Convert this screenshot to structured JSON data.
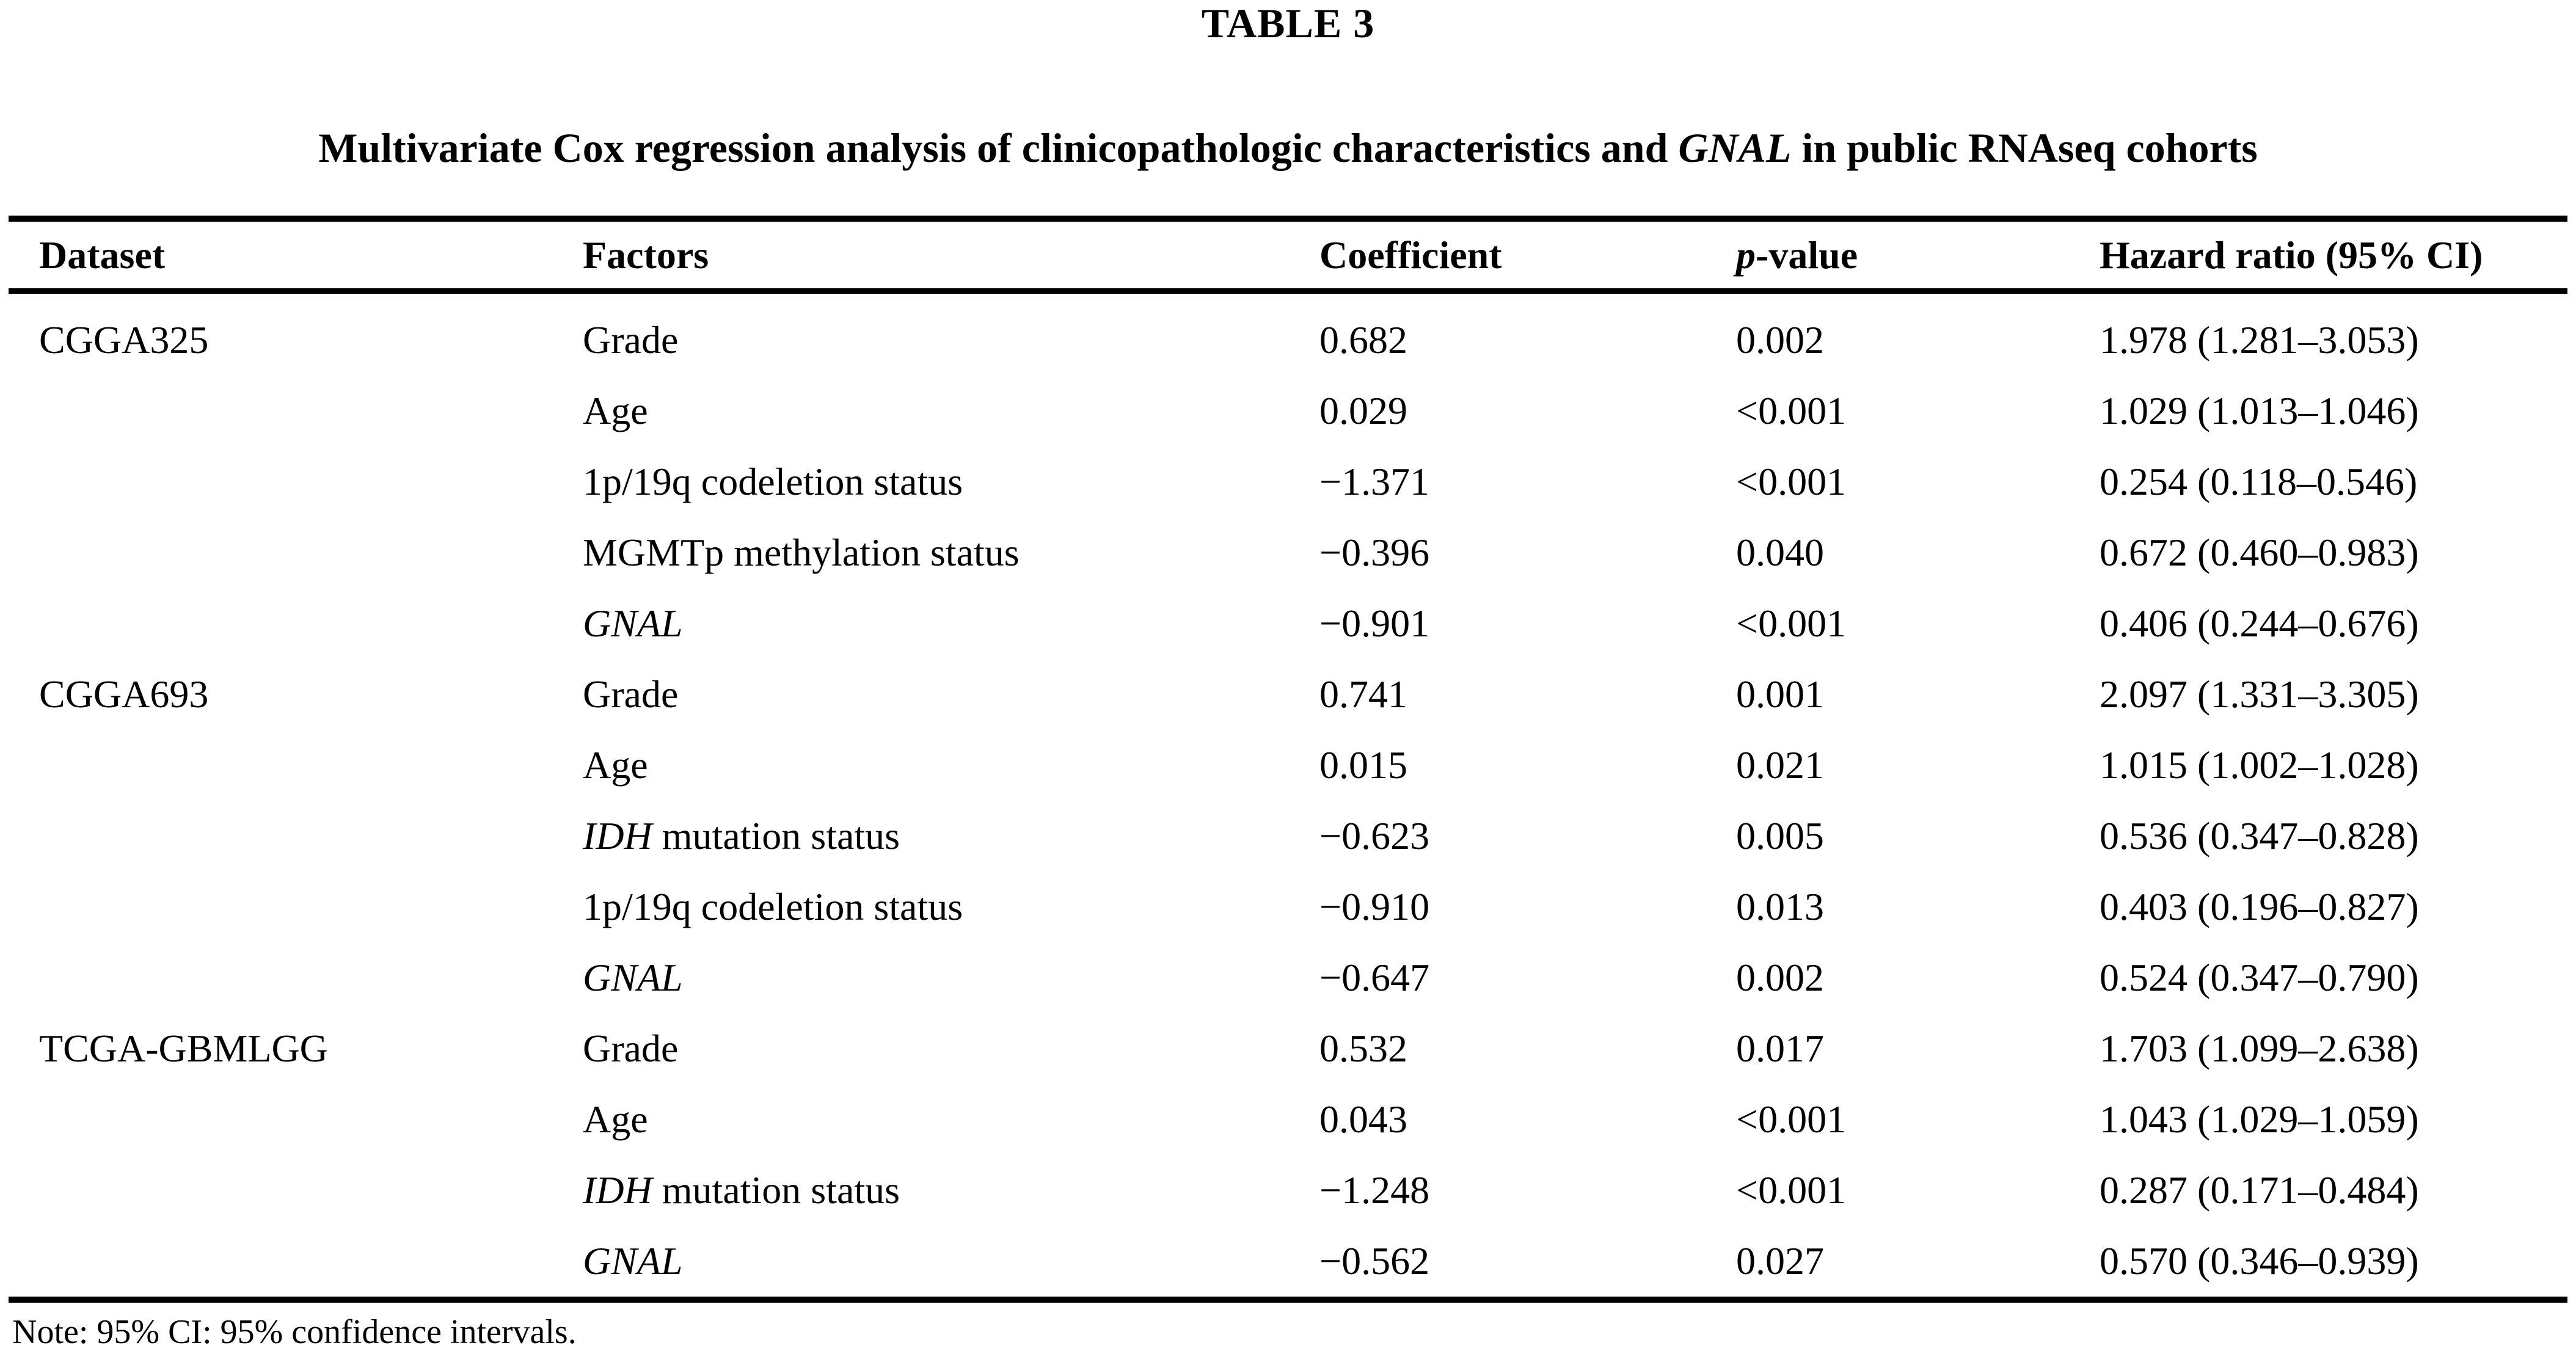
{
  "page": {
    "table_label": "TABLE 3",
    "note": "Note: 95% CI: 95% confidence intervals."
  },
  "title_segments": [
    {
      "t": "Multivariate Cox regression analysis of clinicopathologic characteristics and ",
      "i": false
    },
    {
      "t": "GNAL",
      "i": true
    },
    {
      "t": " in public RNAseq cohorts",
      "i": false
    }
  ],
  "table": {
    "headers": [
      {
        "segments": [
          {
            "t": "Dataset",
            "i": false
          }
        ]
      },
      {
        "segments": [
          {
            "t": "Factors",
            "i": false
          }
        ]
      },
      {
        "segments": [
          {
            "t": "Coefficient",
            "i": false
          }
        ]
      },
      {
        "segments": [
          {
            "t": "p",
            "i": true
          },
          {
            "t": "-value",
            "i": false
          }
        ]
      },
      {
        "segments": [
          {
            "t": "Hazard ratio (95% CI)",
            "i": false
          }
        ]
      }
    ],
    "rows": [
      {
        "dataset": "CGGA325",
        "factor": [
          {
            "t": "Grade",
            "i": false
          }
        ],
        "coefficient": "0.682",
        "p_value": "0.002",
        "hazard_ratio": "1.978 (1.281–3.053)"
      },
      {
        "dataset": "",
        "factor": [
          {
            "t": "Age",
            "i": false
          }
        ],
        "coefficient": "0.029",
        "p_value": "<0.001",
        "hazard_ratio": "1.029 (1.013–1.046)"
      },
      {
        "dataset": "",
        "factor": [
          {
            "t": "1p/19q codeletion status",
            "i": false
          }
        ],
        "coefficient": "−1.371",
        "p_value": "<0.001",
        "hazard_ratio": "0.254 (0.118–0.546)"
      },
      {
        "dataset": "",
        "factor": [
          {
            "t": "MGMTp methylation status",
            "i": false
          }
        ],
        "coefficient": "−0.396",
        "p_value": "0.040",
        "hazard_ratio": "0.672 (0.460–0.983)"
      },
      {
        "dataset": "",
        "factor": [
          {
            "t": "GNAL",
            "i": true
          }
        ],
        "coefficient": "−0.901",
        "p_value": "<0.001",
        "hazard_ratio": "0.406 (0.244–0.676)"
      },
      {
        "dataset": "CGGA693",
        "factor": [
          {
            "t": "Grade",
            "i": false
          }
        ],
        "coefficient": "0.741",
        "p_value": "0.001",
        "hazard_ratio": "2.097 (1.331–3.305)"
      },
      {
        "dataset": "",
        "factor": [
          {
            "t": "Age",
            "i": false
          }
        ],
        "coefficient": "0.015",
        "p_value": "0.021",
        "hazard_ratio": "1.015 (1.002–1.028)"
      },
      {
        "dataset": "",
        "factor": [
          {
            "t": "IDH",
            "i": true
          },
          {
            "t": " mutation status",
            "i": false
          }
        ],
        "coefficient": "−0.623",
        "p_value": "0.005",
        "hazard_ratio": "0.536 (0.347–0.828)"
      },
      {
        "dataset": "",
        "factor": [
          {
            "t": "1p/19q codeletion status",
            "i": false
          }
        ],
        "coefficient": "−0.910",
        "p_value": "0.013",
        "hazard_ratio": "0.403 (0.196–0.827)"
      },
      {
        "dataset": "",
        "factor": [
          {
            "t": "GNAL",
            "i": true
          }
        ],
        "coefficient": "−0.647",
        "p_value": "0.002",
        "hazard_ratio": "0.524 (0.347–0.790)"
      },
      {
        "dataset": "TCGA-GBMLGG",
        "factor": [
          {
            "t": "Grade",
            "i": false
          }
        ],
        "coefficient": "0.532",
        "p_value": "0.017",
        "hazard_ratio": "1.703 (1.099–2.638)"
      },
      {
        "dataset": "",
        "factor": [
          {
            "t": "Age",
            "i": false
          }
        ],
        "coefficient": "0.043",
        "p_value": "<0.001",
        "hazard_ratio": "1.043 (1.029–1.059)"
      },
      {
        "dataset": "",
        "factor": [
          {
            "t": "IDH",
            "i": true
          },
          {
            "t": " mutation status",
            "i": false
          }
        ],
        "coefficient": "−1.248",
        "p_value": "<0.001",
        "hazard_ratio": "0.287 (0.171–0.484)"
      },
      {
        "dataset": "",
        "factor": [
          {
            "t": "GNAL",
            "i": true
          }
        ],
        "coefficient": "−0.562",
        "p_value": "0.027",
        "hazard_ratio": "0.570 (0.346–0.939)"
      }
    ]
  }
}
